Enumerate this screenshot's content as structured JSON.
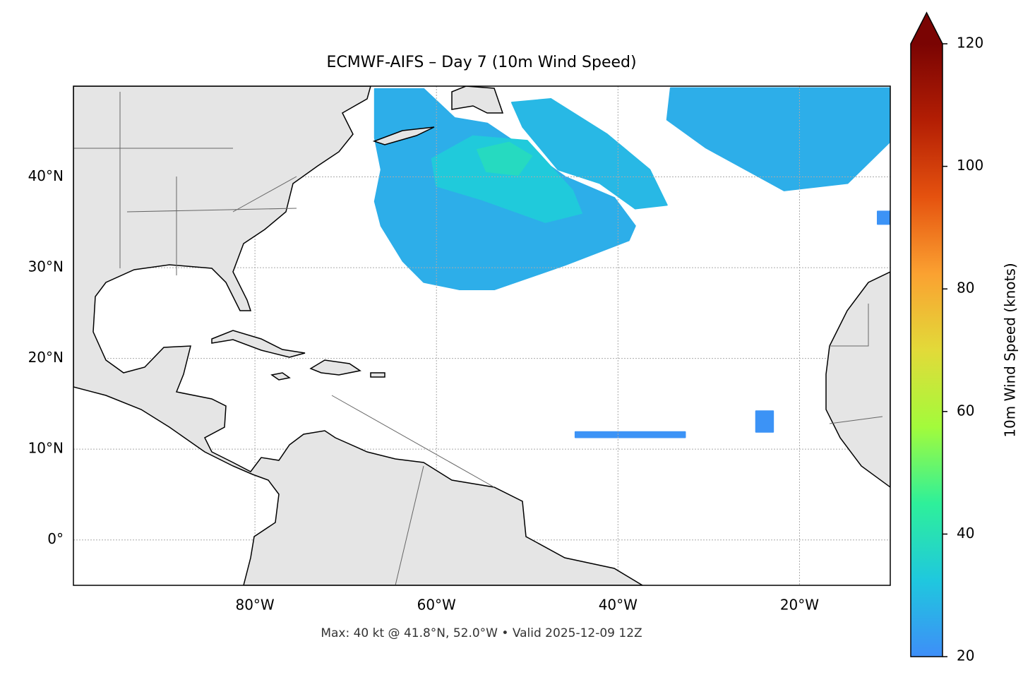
{
  "chart_data": {
    "type": "map",
    "title": "ECMWF-AIFS – Day 7 (10m Wind Speed)",
    "footer": "Max: 40 kt @ 41.8°N, 52.0°W • Valid 2025-12-09 12Z",
    "xlim": [
      -100,
      -10
    ],
    "ylim": [
      -5,
      50
    ],
    "xticks": [
      {
        "value": -80,
        "label": "80°W"
      },
      {
        "value": -60,
        "label": "60°W"
      },
      {
        "value": -40,
        "label": "40°W"
      },
      {
        "value": -20,
        "label": "20°W"
      }
    ],
    "yticks": [
      {
        "value": 0,
        "label": "0°"
      },
      {
        "value": 10,
        "label": "10°N"
      },
      {
        "value": 20,
        "label": "20°N"
      },
      {
        "value": 30,
        "label": "30°N"
      },
      {
        "value": 40,
        "label": "40°N"
      }
    ],
    "grid": true,
    "colorbar": {
      "label": "10m Wind Speed (knots)",
      "lim": [
        20,
        120
      ],
      "ticks": [
        20,
        40,
        60,
        80,
        100,
        120
      ],
      "colormap": [
        "#3e8ef8",
        "#1fc8de",
        "#2ef09a",
        "#a3fb3b",
        "#e2da39",
        "#fba131",
        "#e5520f",
        "#b31e04",
        "#7a0403"
      ]
    },
    "wind_areas": [
      {
        "lon": [
          -66.8,
          -66.8,
          -61.4,
          -58.0,
          -54.4,
          -48.6,
          -45.8,
          -40.4,
          -38.1,
          -38.8,
          -45.8,
          -53.6,
          -57.5,
          -61.4,
          -63.7,
          -66.1,
          -66.8,
          -66.1
        ],
        "lat": [
          44.3,
          49.7,
          49.7,
          46.5,
          45.9,
          42.0,
          40.0,
          37.7,
          34.6,
          33.0,
          30.3,
          27.6,
          27.6,
          28.4,
          30.7,
          34.6,
          37.3,
          40.8
        ],
        "speed": 27
      },
      {
        "lon": [
          -51.7,
          -47.4,
          -41.2,
          -36.5,
          -34.6,
          -38.1,
          -42.0,
          -46.6,
          -50.5
        ],
        "lat": [
          48.2,
          48.6,
          44.7,
          40.8,
          36.9,
          36.5,
          39.3,
          40.8,
          45.5
        ],
        "speed": 29
      },
      {
        "lon": [
          -34.2,
          -10.0,
          -10.0,
          -14.7,
          -21.7,
          -30.3,
          -34.6
        ],
        "lat": [
          49.8,
          49.8,
          43.9,
          39.3,
          38.5,
          43.2,
          46.3
        ],
        "speed": 27
      },
      {
        "lon": [
          -60.5,
          -56.0,
          -50.0,
          -45.0,
          -44.0,
          -48.0,
          -55.0,
          -60.0
        ],
        "lat": [
          42.0,
          44.5,
          44.0,
          38.5,
          36.0,
          35.0,
          37.5,
          39.0
        ],
        "speed": 33
      },
      {
        "lon": [
          -55.5,
          -52.0,
          -49.5,
          -51.0,
          -54.5
        ],
        "lat": [
          43.0,
          43.8,
          42.3,
          40.2,
          40.6
        ],
        "speed": 38
      },
      {
        "lon": [
          -44.7,
          -32.6,
          -32.6,
          -44.7
        ],
        "lat": [
          11.9,
          11.9,
          11.3,
          11.3
        ],
        "speed": 21
      },
      {
        "lon": [
          -24.8,
          -22.9,
          -22.9,
          -24.8
        ],
        "lat": [
          14.2,
          14.2,
          11.9,
          11.9
        ],
        "speed": 21
      },
      {
        "lon": [
          -11.4,
          -10.0,
          -10.0,
          -11.4
        ],
        "lat": [
          36.2,
          36.2,
          34.8,
          34.8
        ],
        "speed": 21
      }
    ]
  }
}
